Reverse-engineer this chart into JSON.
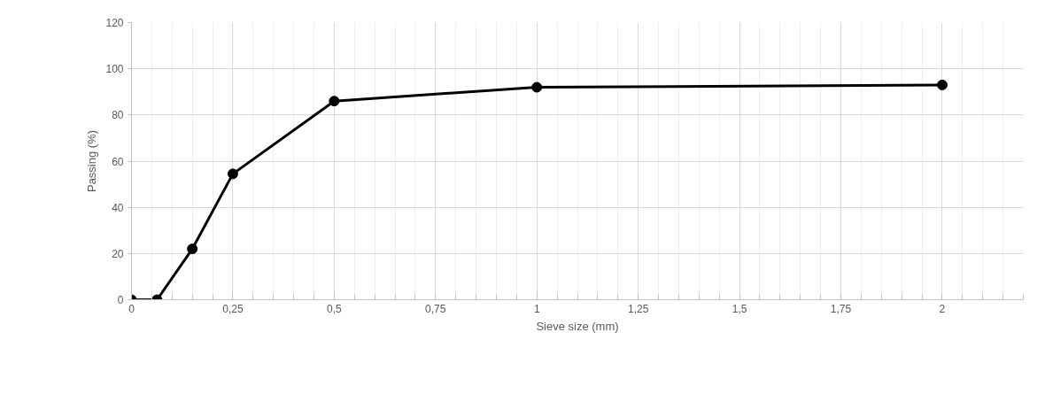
{
  "chart_data": {
    "type": "line",
    "xlabel": "Sieve size (mm)",
    "ylabel": "Passing (%)",
    "x": [
      0,
      0.063,
      0.15,
      0.25,
      0.5,
      1,
      2
    ],
    "series": [
      {
        "color": "#000000",
        "values": [
          0,
          0,
          22,
          54.5,
          86,
          92,
          93
        ]
      }
    ],
    "xlim": [
      0,
      2.2
    ],
    "ylim": [
      0,
      120
    ],
    "xticks": [
      0,
      {
        "value": 0.25,
        "label": "0,25"
      },
      {
        "value": 0.5,
        "label": "0,5"
      },
      {
        "value": 0.75,
        "label": "0,75"
      },
      1,
      {
        "value": 1.25,
        "label": "1,25"
      },
      {
        "value": 1.5,
        "label": "1,5"
      },
      {
        "value": 1.75,
        "label": "1,75"
      },
      2
    ],
    "yticks": [
      0,
      20,
      40,
      60,
      80,
      100,
      120
    ],
    "grid": true,
    "marker": "circle",
    "line_style": "solid"
  }
}
